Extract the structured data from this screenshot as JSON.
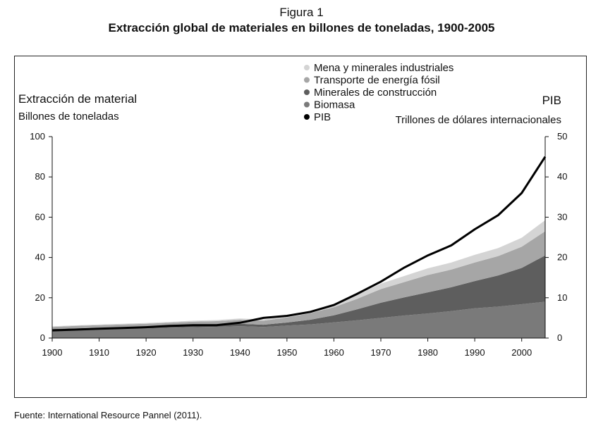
{
  "figure": {
    "label": "Figura 1",
    "title": "Extracción global de materiales en billones de toneladas, 1900-2005",
    "source": "Fuente: International Resource Pannel (2011)."
  },
  "chart_data": {
    "type": "area",
    "stacked": true,
    "secondary_series_type": "line",
    "left_axis": {
      "title": "Extracción de material",
      "unit": "Billones de toneladas",
      "range": [
        0,
        100
      ],
      "ticks": [
        0,
        20,
        40,
        60,
        80,
        100
      ]
    },
    "right_axis": {
      "title": "PIB",
      "unit": "Trillones de dólares internacionales",
      "range": [
        0,
        50
      ],
      "ticks": [
        0,
        10,
        20,
        30,
        40,
        50
      ]
    },
    "x_axis": {
      "range": [
        1900,
        2005
      ],
      "ticks": [
        1900,
        1910,
        1920,
        1930,
        1940,
        1950,
        1960,
        1970,
        1980,
        1990,
        2000
      ]
    },
    "grid": false,
    "legend_position": "top-right",
    "x": [
      1900,
      1905,
      1910,
      1915,
      1920,
      1925,
      1930,
      1935,
      1940,
      1945,
      1950,
      1955,
      1960,
      1965,
      1970,
      1975,
      1980,
      1985,
      1990,
      1995,
      2000,
      2005
    ],
    "series": [
      {
        "name": "Biomasa",
        "color": "#7a7a7a",
        "axis": "left",
        "values": [
          4.0,
          4.2,
          4.4,
          4.6,
          4.8,
          5.1,
          5.4,
          5.6,
          5.9,
          5.5,
          6.2,
          6.8,
          7.8,
          8.8,
          10.0,
          11.2,
          12.2,
          13.4,
          14.8,
          15.6,
          16.8,
          18.0
        ]
      },
      {
        "name": "Minerales de construcción",
        "color": "#5e5e5e",
        "axis": "left",
        "values": [
          0.5,
          0.6,
          0.7,
          0.7,
          0.8,
          0.9,
          1.0,
          1.0,
          1.2,
          1.1,
          1.5,
          2.3,
          3.5,
          5.5,
          7.5,
          9.0,
          10.5,
          11.8,
          13.5,
          15.5,
          18.0,
          23.0
        ]
      },
      {
        "name": "Transporte de energía fósil",
        "color": "#a6a6a6",
        "axis": "left",
        "values": [
          1.0,
          1.2,
          1.3,
          1.4,
          1.5,
          1.6,
          1.7,
          1.8,
          2.0,
          2.0,
          2.5,
          3.2,
          4.0,
          5.2,
          6.8,
          7.6,
          8.6,
          8.8,
          9.2,
          9.6,
          10.5,
          12.0
        ]
      },
      {
        "name": "Mena y minerales industriales",
        "color": "#d4d4d4",
        "axis": "left",
        "values": [
          0.3,
          0.3,
          0.3,
          0.4,
          0.4,
          0.4,
          0.5,
          0.5,
          0.6,
          0.6,
          0.8,
          1.0,
          1.4,
          2.0,
          2.7,
          3.0,
          3.3,
          3.5,
          3.8,
          4.0,
          4.5,
          5.5
        ]
      },
      {
        "name": "PIB",
        "color": "#000000",
        "axis": "right",
        "values": [
          1.9,
          2.1,
          2.3,
          2.5,
          2.7,
          3.0,
          3.2,
          3.2,
          3.8,
          5.0,
          5.5,
          6.5,
          8.2,
          11.0,
          14.0,
          17.5,
          20.5,
          23.0,
          27.0,
          30.5,
          36.0,
          45.0
        ]
      }
    ]
  }
}
